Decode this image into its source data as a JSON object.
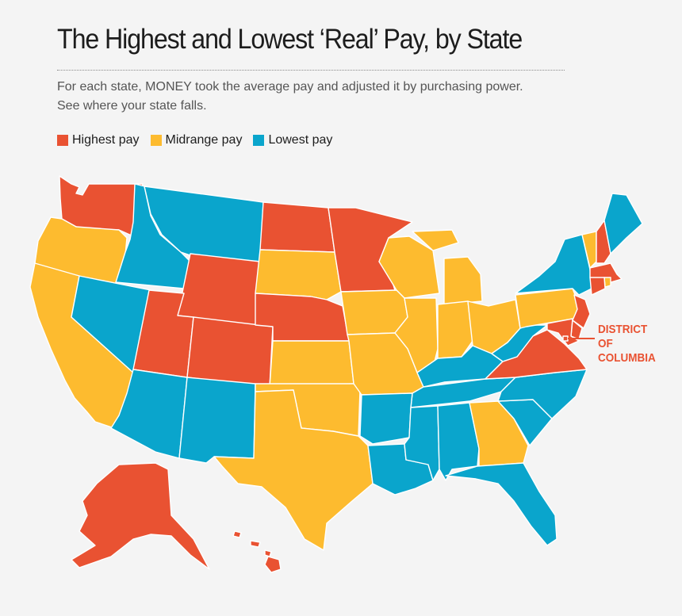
{
  "title": "The Highest and Lowest ‘Real’ Pay, by State",
  "subtitle_line1": "For each state, MONEY took the average pay and adjusted it by purchasing power.",
  "subtitle_line2": "See where your state falls.",
  "colors": {
    "highest": "#e95232",
    "midrange": "#fdbb2f",
    "lowest": "#0aa5cc"
  },
  "legend": [
    {
      "label": "Highest pay",
      "category": "highest"
    },
    {
      "label": "Midrange pay",
      "category": "midrange"
    },
    {
      "label": "Lowest pay",
      "category": "lowest"
    }
  ],
  "dc_label": {
    "line1": "DISTRICT",
    "line2": "OF",
    "line3": "COLUMBIA"
  },
  "states": {
    "WA": "highest",
    "OR": "midrange",
    "CA": "midrange",
    "ID": "lowest",
    "NV": "lowest",
    "MT": "lowest",
    "WY": "highest",
    "UT": "highest",
    "AZ": "lowest",
    "CO": "highest",
    "NM": "lowest",
    "ND": "highest",
    "SD": "midrange",
    "NE": "highest",
    "KS": "midrange",
    "OK": "midrange",
    "TX": "midrange",
    "MN": "highest",
    "IA": "midrange",
    "MO": "midrange",
    "AR": "lowest",
    "LA": "lowest",
    "WI": "midrange",
    "IL": "midrange",
    "MI": "midrange",
    "IN": "midrange",
    "OH": "midrange",
    "KY": "lowest",
    "TN": "lowest",
    "MS": "lowest",
    "AL": "lowest",
    "GA": "midrange",
    "FL": "lowest",
    "SC": "lowest",
    "NC": "lowest",
    "VA": "highest",
    "WV": "lowest",
    "PA": "midrange",
    "NY": "lowest",
    "VT": "midrange",
    "NH": "highest",
    "ME": "lowest",
    "MA": "highest",
    "RI": "midrange",
    "CT": "highest",
    "NJ": "highest",
    "DE": "highest",
    "MD": "highest",
    "DC": "highest",
    "AK": "highest",
    "HI": "highest"
  }
}
